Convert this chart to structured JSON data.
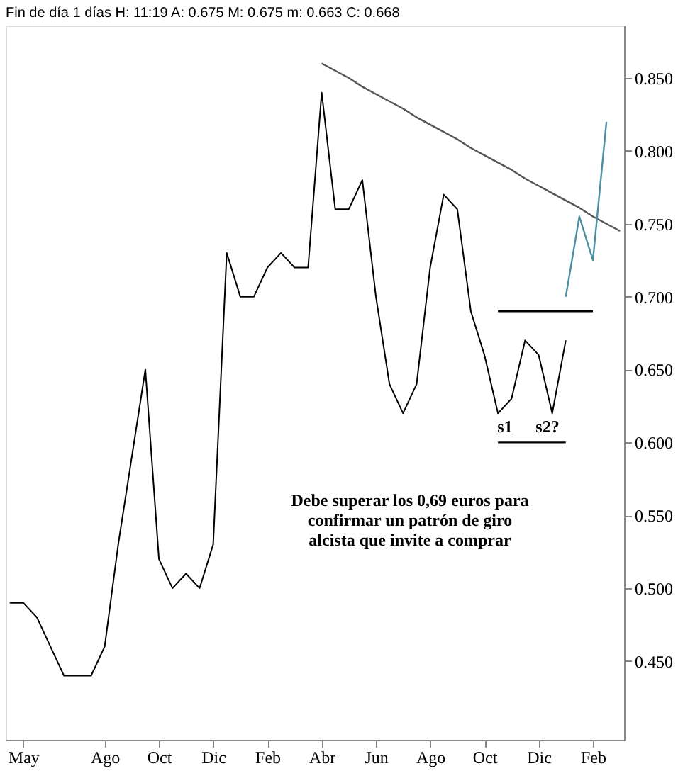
{
  "chart_data": {
    "type": "line",
    "title": "Fin de día 1 días  H: 11:19  A: 0.675  M: 0.675  m: 0.663  C: 0.668",
    "categories": [
      null,
      "May",
      null,
      null,
      null,
      null,
      null,
      "Ago",
      null,
      null,
      null,
      "Oct",
      null,
      null,
      null,
      "Dic",
      null,
      null,
      null,
      "Feb",
      null,
      null,
      null,
      "Abr",
      null,
      null,
      null,
      "Jun",
      null,
      null,
      null,
      "Ago",
      null,
      null,
      null,
      "Oct",
      null,
      null,
      null,
      "Dic",
      null,
      null,
      null,
      "Feb",
      null,
      null
    ],
    "ylim": [
      0.396,
      0.886
    ],
    "yticks": [
      {
        "value": 0.45,
        "label": "0.450"
      },
      {
        "value": 0.5,
        "label": "0.500"
      },
      {
        "value": 0.55,
        "label": "0.550"
      },
      {
        "value": 0.6,
        "label": "0.600"
      },
      {
        "value": 0.65,
        "label": "0.650"
      },
      {
        "value": 0.7,
        "label": "0.700"
      },
      {
        "value": 0.75,
        "label": "0.750"
      },
      {
        "value": 0.8,
        "label": "0.800"
      },
      {
        "value": 0.85,
        "label": "0.850"
      }
    ],
    "grid": false,
    "marker": "none",
    "line_style": "solid",
    "series": [
      {
        "color": "#000000",
        "values": [
          0.49,
          0.49,
          0.48,
          0.46,
          0.44,
          0.44,
          0.44,
          0.46,
          0.53,
          0.59,
          0.65,
          0.52,
          0.5,
          0.51,
          0.5,
          0.53,
          0.73,
          0.7,
          0.7,
          0.72,
          0.73,
          0.72,
          0.72,
          0.84,
          0.76,
          0.76,
          0.78,
          0.7,
          0.64,
          0.62,
          0.64,
          0.72,
          0.77,
          0.76,
          0.69,
          0.66,
          0.62,
          0.63,
          0.67,
          0.66,
          0.62,
          0.67,
          null,
          null,
          null,
          null
        ]
      },
      {
        "color": "#555555",
        "values": [
          null,
          null,
          null,
          null,
          null,
          null,
          null,
          null,
          null,
          null,
          null,
          null,
          null,
          null,
          null,
          null,
          null,
          null,
          null,
          null,
          null,
          null,
          null,
          0.86,
          0.855,
          0.85,
          0.844,
          0.839,
          0.834,
          0.829,
          0.823,
          0.818,
          0.813,
          0.808,
          0.802,
          0.797,
          0.792,
          0.787,
          0.781,
          0.776,
          0.771,
          0.766,
          0.761,
          0.755,
          0.75,
          0.745
        ]
      },
      {
        "color": "#4a8fa0",
        "values": [
          null,
          null,
          null,
          null,
          null,
          null,
          null,
          null,
          null,
          null,
          null,
          null,
          null,
          null,
          null,
          null,
          null,
          null,
          null,
          null,
          null,
          null,
          null,
          null,
          null,
          null,
          null,
          null,
          null,
          null,
          null,
          null,
          null,
          null,
          null,
          null,
          null,
          null,
          null,
          null,
          null,
          0.7,
          0.755,
          0.725,
          0.82,
          null
        ]
      },
      {
        "color": "#000000",
        "values": [
          null,
          null,
          null,
          null,
          null,
          null,
          null,
          null,
          null,
          null,
          null,
          null,
          null,
          null,
          null,
          null,
          null,
          null,
          null,
          null,
          null,
          null,
          null,
          null,
          null,
          null,
          null,
          null,
          null,
          null,
          null,
          null,
          null,
          null,
          null,
          null,
          0.69,
          0.69,
          0.69,
          0.69,
          0.69,
          0.69,
          0.69,
          0.69,
          null,
          null
        ]
      },
      {
        "color": "#000000",
        "values": [
          null,
          null,
          null,
          null,
          null,
          null,
          null,
          null,
          null,
          null,
          null,
          null,
          null,
          null,
          null,
          null,
          null,
          null,
          null,
          null,
          null,
          null,
          null,
          null,
          null,
          null,
          null,
          null,
          null,
          null,
          null,
          null,
          null,
          null,
          null,
          null,
          0.6,
          0.6,
          0.6,
          0.6,
          0.6,
          0.6,
          null,
          null,
          null,
          null
        ]
      }
    ],
    "annotations": [
      "s1",
      "s2?",
      "Debe superar los 0,69 euros para\nconfirmar un patrón de giro\nalcista que invite a comprar"
    ]
  }
}
